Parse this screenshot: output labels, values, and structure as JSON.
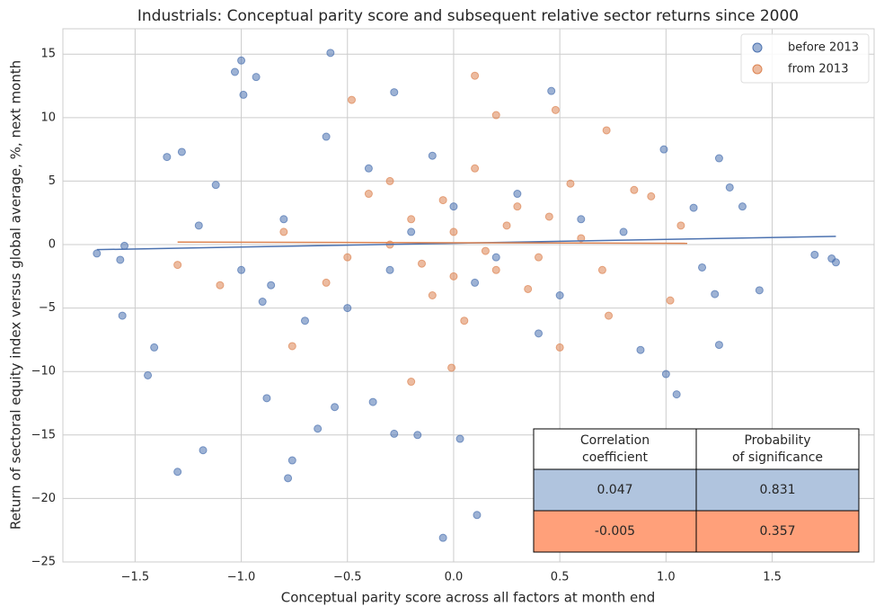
{
  "chart_data": {
    "type": "scatter",
    "title": "Industrials: Conceptual parity score and subsequent relative sector returns since 2000",
    "x_label": "Conceptual parity score across all factors at month end",
    "y_label": "Return of sectoral equity index versus global average, %, next month",
    "xlim": [
      -1.84,
      1.98
    ],
    "ylim": [
      -25,
      17
    ],
    "xticks": [
      {
        "value": -1.5,
        "label": "−1.5"
      },
      {
        "value": -1.0,
        "label": "−1.0"
      },
      {
        "value": -0.5,
        "label": "−0.5"
      },
      {
        "value": 0,
        "label": "0.0"
      },
      0.5,
      {
        "value": 1.0,
        "label": "1.0"
      },
      1.5
    ],
    "yticks": [
      {
        "value": -25,
        "label": "−25"
      },
      {
        "value": -20,
        "label": "−20"
      },
      {
        "value": -15,
        "label": "−15"
      },
      {
        "value": -10,
        "label": "−10"
      },
      {
        "value": -5,
        "label": "−5"
      },
      0,
      5,
      10,
      15
    ],
    "grid": true,
    "legend": "upper right",
    "series": [
      {
        "name": "before 2013",
        "color": "#4c72b0",
        "x": [
          -1.68,
          -1.57,
          -1.56,
          -1.55,
          -1.44,
          -1.41,
          -1.35,
          -1.3,
          -1.28,
          -1.18,
          -1.12,
          -1.03,
          -1.0,
          -0.99,
          -0.93,
          -0.88,
          -0.86,
          -0.78,
          -0.76,
          -0.64,
          -0.58,
          -0.56,
          -0.38,
          -0.28,
          -0.28,
          -0.17,
          -0.05,
          0.03,
          0.11,
          0.46,
          0.88,
          0.99,
          1.0,
          1.05,
          1.13,
          1.17,
          1.23,
          1.25,
          1.25,
          1.3,
          1.36,
          1.44,
          1.7,
          1.78,
          1.8,
          -0.6,
          -0.4,
          0,
          -0.3,
          0.2,
          -0.5,
          0.3,
          -0.8,
          -0.2,
          0.1,
          0.5,
          -1.0,
          0.6,
          -0.1,
          0.4,
          -0.7,
          0.8,
          -1.2,
          -0.9
        ],
        "values": [
          -0.7,
          -1.2,
          -5.6,
          -0.1,
          -10.3,
          -8.1,
          6.9,
          -17.9,
          7.3,
          -16.2,
          4.7,
          13.6,
          14.5,
          11.8,
          13.2,
          -12.1,
          -3.2,
          -18.4,
          -17,
          -14.5,
          15.1,
          -12.8,
          -12.4,
          12.0,
          -14.9,
          -15,
          -23.1,
          -15.3,
          -21.3,
          12.1,
          -8.3,
          7.5,
          -10.2,
          -11.8,
          2.9,
          -1.8,
          -3.9,
          6.8,
          -7.9,
          4.5,
          3,
          -3.6,
          -0.8,
          -1.1,
          -1.4,
          8.5,
          6,
          3,
          -2,
          -1,
          -5,
          4,
          2,
          1,
          -3,
          -4,
          -2,
          2,
          7,
          -7,
          -6,
          1,
          1.5,
          -4.5
        ],
        "fit_x": [
          -1.68,
          1.8
        ],
        "fit_y": [
          -0.4,
          0.65
        ]
      },
      {
        "name": "from 2013",
        "color": "#dd8452",
        "x": [
          -1.3,
          -1.1,
          -0.76,
          -0.48,
          -0.2,
          -0.01,
          0.1,
          0.2,
          0.48,
          0.72,
          0.85,
          0.93,
          1.02,
          1.07,
          0.5,
          0.73,
          -0.3,
          0,
          0.2,
          -0.1,
          0.3,
          -0.5,
          0.1,
          -0.2,
          0.4,
          0.6,
          -0.4,
          0.05,
          0.15,
          -0.05,
          0.25,
          -0.6,
          0.7,
          -0.8,
          0.35,
          0.55,
          -0.15,
          0.0,
          0.45,
          -0.3
        ],
        "values": [
          -1.6,
          -3.2,
          -8,
          11.4,
          -10.8,
          -9.7,
          13.3,
          10.2,
          10.6,
          9,
          4.3,
          3.8,
          -4.4,
          1.5,
          -8.1,
          -5.6,
          5,
          1,
          -2,
          -4,
          3,
          -1,
          6,
          2,
          -1,
          0.5,
          4,
          -6,
          -0.5,
          3.5,
          1.5,
          -3,
          -2,
          1,
          -3.5,
          4.8,
          -1.5,
          -2.5,
          2.2,
          0
        ],
        "fit_x": [
          -1.3,
          1.1
        ],
        "fit_y": [
          0.2,
          0.1
        ]
      }
    ],
    "table": {
      "header": [
        [
          "Correlation",
          "coefficient"
        ],
        [
          "Probability",
          "of significance"
        ]
      ],
      "rows": [
        [
          0.047,
          0.831
        ],
        [
          -0.005,
          0.357
        ]
      ],
      "row_colors": [
        "#b0c4de",
        "#ffa07a"
      ]
    }
  }
}
